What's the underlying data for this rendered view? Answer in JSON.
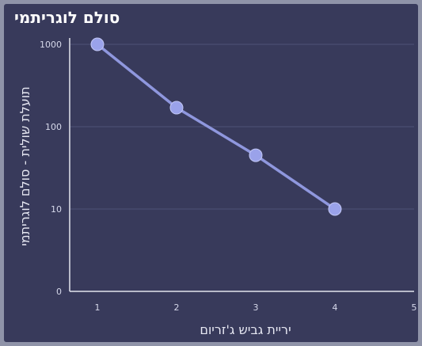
{
  "chart_data": {
    "type": "line",
    "title": "סולם לוגריתמי",
    "xlabel": "יריית גביש ג'זריום",
    "ylabel": "תועלת שולית - סולם לוגריתמי",
    "y_scale": "log",
    "x": [
      1,
      2,
      3,
      4
    ],
    "y": [
      1000,
      170,
      45,
      10
    ],
    "x_ticks": [
      "1",
      "2",
      "3",
      "4",
      "5"
    ],
    "y_ticks": [
      "1000",
      "100",
      "10",
      "0"
    ],
    "xlim": [
      0.65,
      5
    ],
    "grid": "horizontal",
    "line_color": "#8f97de",
    "marker_color": "#9aa2ea",
    "background_color": "#383a5b"
  }
}
